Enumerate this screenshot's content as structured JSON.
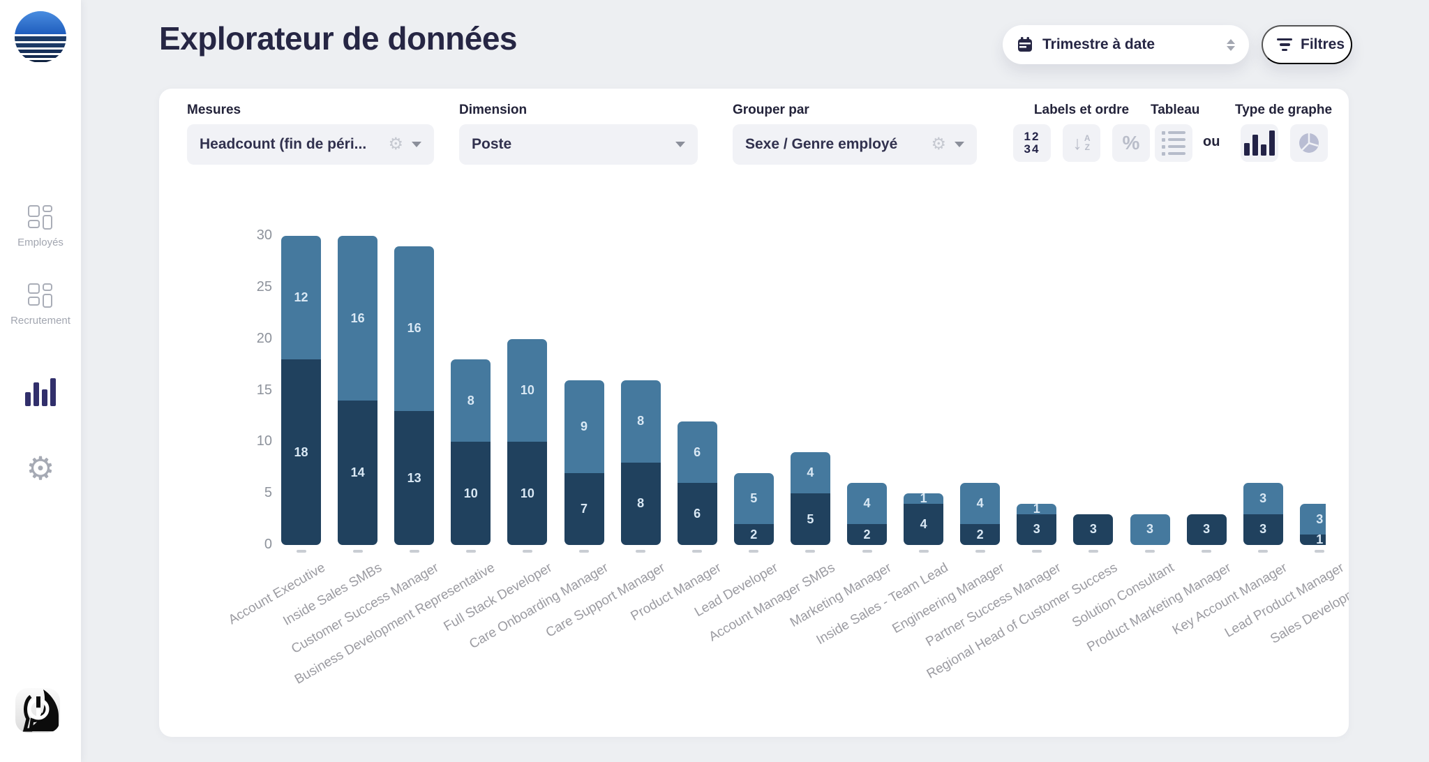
{
  "header": {
    "title": "Explorateur de données",
    "period_selector": {
      "value": "Trimestre à date",
      "icon": "calendar-icon"
    },
    "filters_button": {
      "label": "Filtres",
      "icon": "filter-icon"
    }
  },
  "sidebar": {
    "items": [
      {
        "label": "Employés",
        "icon": "kanban-icon",
        "active": false
      },
      {
        "label": "Recrutement",
        "icon": "kanban-icon",
        "active": false
      },
      {
        "label": "",
        "icon": "bar-chart-icon",
        "active": true
      },
      {
        "label": "",
        "icon": "gear-icon",
        "active": false
      }
    ]
  },
  "toolbar": {
    "measures": {
      "label": "Mesures",
      "value": "Headcount (fin de péri..."
    },
    "dimension": {
      "label": "Dimension",
      "value": "Poste"
    },
    "group_by": {
      "label": "Grouper par",
      "value": "Sexe / Genre employé"
    },
    "labels_order": {
      "label": "Labels et ordre",
      "buttons": [
        "numbers-icon",
        "sort-az-icon",
        "percent-icon"
      ]
    },
    "table": {
      "label": "Tableau",
      "icon": "list-icon"
    },
    "or_text": "ou",
    "chart_type": {
      "label": "Type de graphe",
      "buttons": [
        "bar-chart-icon",
        "pie-chart-icon"
      ]
    }
  },
  "chart_data": {
    "type": "bar",
    "stacked": true,
    "categories": [
      "Account Executive",
      "Inside Sales SMBs",
      "Customer Success Manager",
      "Business Development Representative",
      "Full Stack Developer",
      "Care Onboarding Manager",
      "Care Support Manager",
      "Product Manager",
      "Lead Developer",
      "Account Manager SMBs",
      "Marketing Manager",
      "Inside Sales - Team Lead",
      "Engineering Manager",
      "Partner Success Manager",
      "Regional Head of Customer Success",
      "Solution Consultant",
      "Product Marketing Manager",
      "Key Account Manager",
      "Lead Product Manager",
      "Sales Development Repr"
    ],
    "series": [
      {
        "name": "segment-bas-fonce",
        "color": "#20415e",
        "values": [
          18,
          14,
          13,
          10,
          10,
          7,
          8,
          6,
          2,
          5,
          2,
          4,
          2,
          3,
          3,
          0,
          3,
          3,
          1,
          null
        ]
      },
      {
        "name": "segment-haut-clair",
        "color": "#45799e",
        "values": [
          12,
          16,
          16,
          8,
          10,
          9,
          8,
          6,
          5,
          4,
          4,
          1,
          4,
          1,
          0,
          3,
          0,
          3,
          3,
          null
        ]
      }
    ],
    "ylim": [
      0,
      30
    ],
    "yticks": [
      0,
      5,
      10,
      15,
      20,
      25,
      30
    ],
    "grid": false,
    "legend": false,
    "value_labels": true,
    "value_label_color": "#d9e8f4",
    "x_label_rotation_deg": -30
  }
}
